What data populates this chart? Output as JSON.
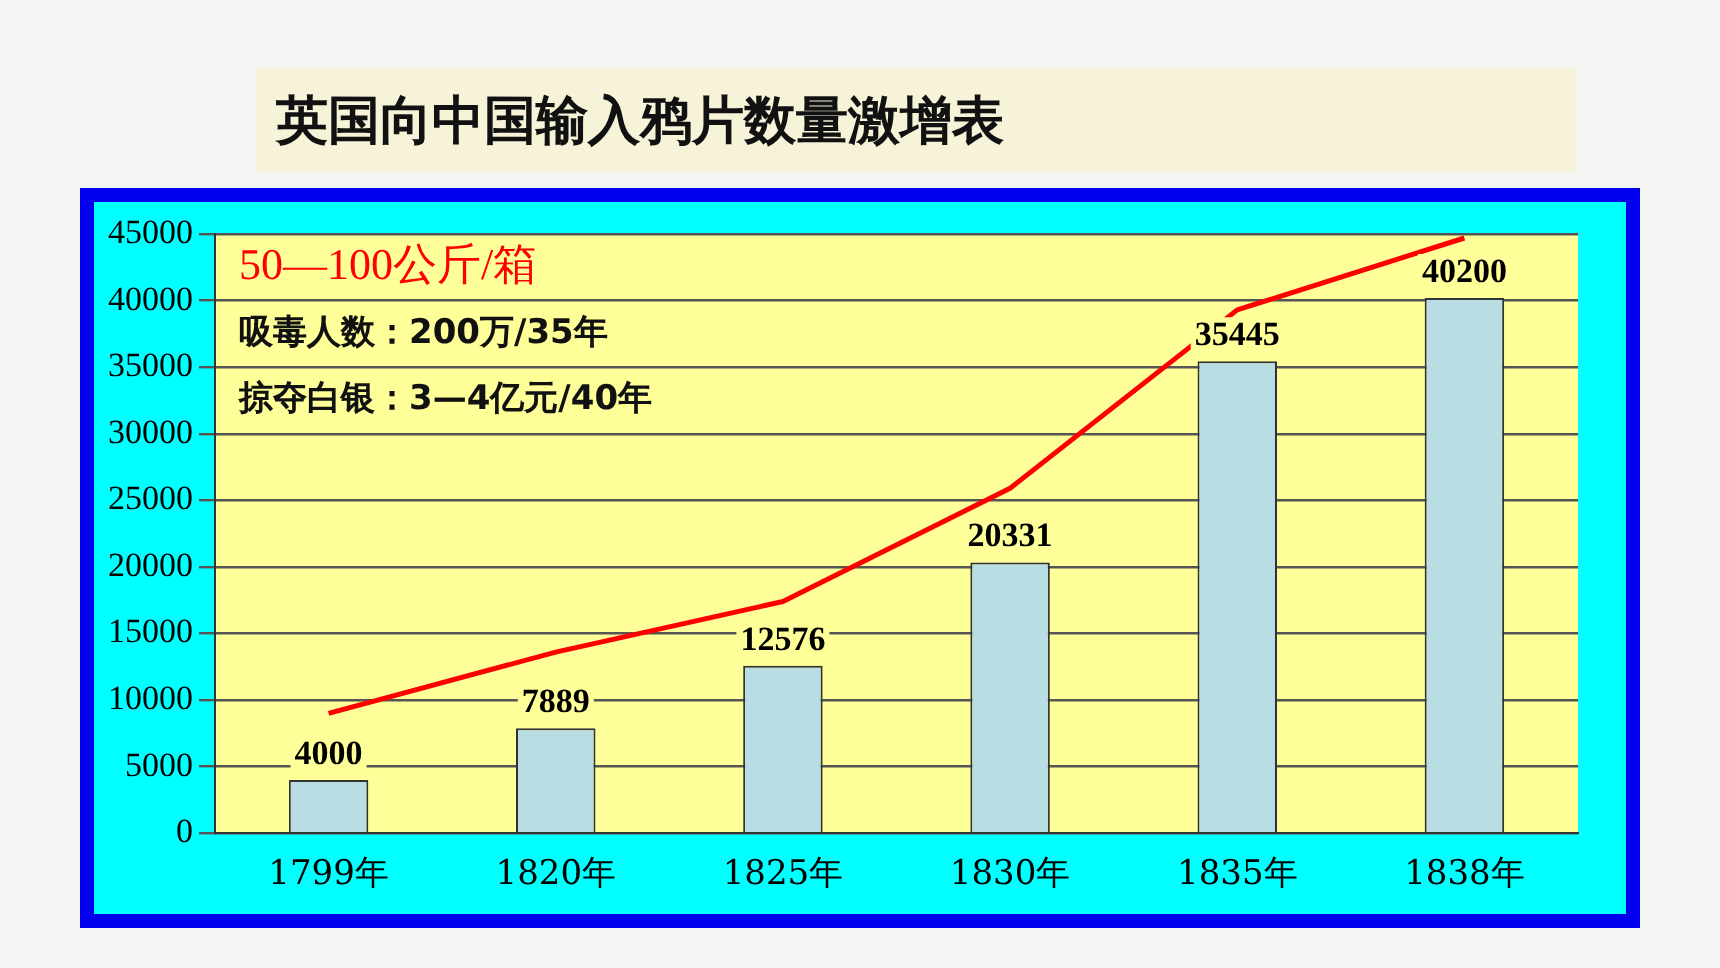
{
  "chart_data": {
    "type": "bar",
    "title": "英国向中国输入鸦片数量激增表",
    "categories": [
      "1799年",
      "1820年",
      "1825年",
      "1830年",
      "1835年",
      "1838年"
    ],
    "series": [
      {
        "color": "#b8dde3",
        "values": [
          4000,
          7889,
          12576,
          20331,
          35445,
          40200
        ],
        "value_labels": [
          "4000",
          "7889",
          "12576",
          "20331",
          "35445",
          "40200"
        ]
      },
      {
        "type": "line",
        "color": "#ff0000",
        "values": [
          9000,
          13600,
          17400,
          25900,
          39300,
          44700
        ]
      }
    ],
    "ylim": [
      0,
      45000
    ],
    "yticks": [
      0,
      5000,
      10000,
      15000,
      20000,
      25000,
      30000,
      35000,
      40000,
      45000
    ],
    "grid": "y",
    "legend": false,
    "marker": "none",
    "annotations": [
      "50—100公斤/箱",
      "吸毒人数：200万/35年",
      "掠夺白银：3—4亿元/40年"
    ]
  }
}
